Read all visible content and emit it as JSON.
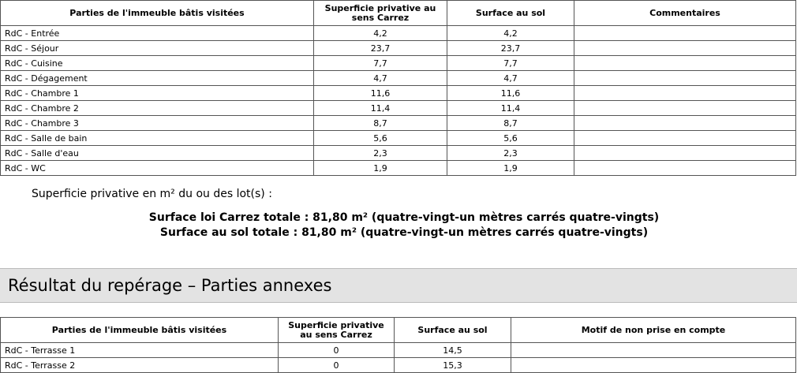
{
  "table1": {
    "headers": [
      "Parties de l'immeuble bâtis visitées",
      "Superficie privative au sens Carrez",
      "Surface au sol",
      "Commentaires"
    ],
    "rows": [
      [
        "RdC - Entrée",
        "4,2",
        "4,2"
      ],
      [
        "RdC - Séjour",
        "23,7",
        "23,7"
      ],
      [
        "RdC - Cuisine",
        "7,7",
        "7,7"
      ],
      [
        "RdC - Dégagement",
        "4,7",
        "4,7"
      ],
      [
        "RdC - Chambre 1",
        "11,6",
        "11,6"
      ],
      [
        "RdC - Chambre 2",
        "11,4",
        "11,4"
      ],
      [
        "RdC - Chambre 3",
        "8,7",
        "8,7"
      ],
      [
        "RdC - Salle de bain",
        "5,6",
        "5,6"
      ],
      [
        "RdC - Salle d'eau",
        "2,3",
        "2,3"
      ],
      [
        "RdC - WC",
        "1,9",
        "1,9"
      ]
    ]
  },
  "summary": {
    "intro": "Superficie privative en m² du ou des lot(s) :",
    "line1": "Surface loi Carrez totale : 81,80 m² (quatre-vingt-un mètres carrés quatre-vingts)",
    "line2": "Surface au sol totale : 81,80 m² (quatre-vingt-un mètres carrés quatre-vingts)"
  },
  "section_title": "Résultat du repérage – Parties annexes",
  "table2": {
    "headers": [
      "Parties de l'immeuble bâtis visitées",
      "Superficie privative au sens Carrez",
      "Surface au sol",
      "Motif de non prise en compte"
    ],
    "rows": [
      [
        "RdC - Terrasse 1",
        "0",
        "14,5"
      ],
      [
        "RdC - Terrasse 2",
        "0",
        "15,3"
      ]
    ]
  }
}
